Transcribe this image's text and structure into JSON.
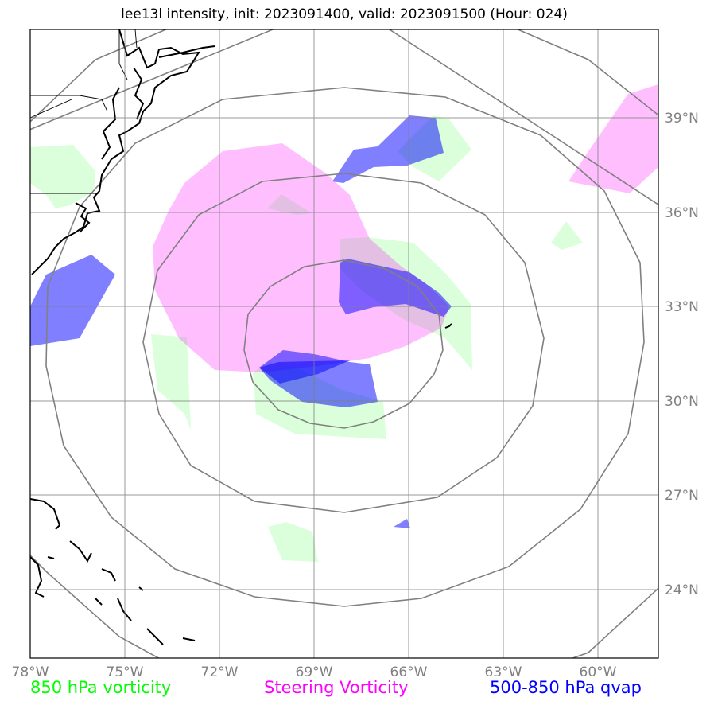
{
  "title": "lee13l intensity, init: 2023091400, valid: 2023091500 (Hour: 024)",
  "axes": {
    "x_ticks": [
      "78°W",
      "75°W",
      "72°W",
      "69°W",
      "66°W",
      "63°W",
      "60°W"
    ],
    "y_ticks": [
      "39°N",
      "36°N",
      "33°N",
      "30°N",
      "27°N",
      "24°N"
    ]
  },
  "legend": {
    "green": "850 hPa vorticity",
    "pink": "Steering Vorticity",
    "blue": "500-850 hPa qvap"
  },
  "colors": {
    "green": "#00ff00",
    "pink": "#ff00ff",
    "blue": "#0000ff",
    "grid": "#808080",
    "coast": "#000000",
    "rings": "#808080"
  },
  "map_extent": {
    "lon": [
      -78,
      -58
    ],
    "lat": [
      22,
      42
    ]
  },
  "storm_center": {
    "lon": -68,
    "lat": 31.6
  },
  "range_rings_deg": [
    3,
    6,
    9,
    12
  ]
}
